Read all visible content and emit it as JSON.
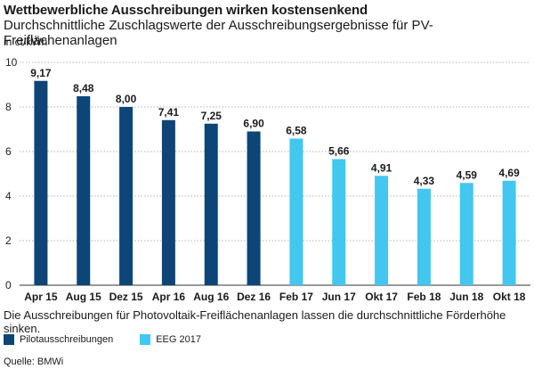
{
  "title": "Wettbewerbliche Ausschreibungen wirken kostensenkend",
  "subtitle": "Durchschnittliche Zuschlagswerte der Ausschreibungsergebnisse für PV-Freiflächenanlagen",
  "unit_label": "in ct/kWh",
  "caption": "Die Ausschreibungen für Photovoltaik-Freiflächenanlagen lassen die durchschnittliche Förderhöhe sinken.",
  "source": "Quelle: BMWi",
  "colors": {
    "pilot": "#0d4577",
    "eeg": "#43c6ef",
    "grid": "#b4b4b4",
    "axis": "#333333"
  },
  "legend": [
    {
      "label": "Pilotausschreibungen",
      "color": "#0d4577"
    },
    {
      "label": "EEG 2017",
      "color": "#43c6ef"
    }
  ],
  "chart_data": {
    "type": "bar",
    "categories": [
      "Apr 15",
      "Aug 15",
      "Dez 15",
      "Apr 16",
      "Aug 16",
      "Dez 16",
      "Feb 17",
      "Jun 17",
      "Okt 17",
      "Feb 18",
      "Jun 18",
      "Okt 18"
    ],
    "values": [
      9.17,
      8.48,
      8.0,
      7.41,
      7.25,
      6.9,
      6.58,
      5.66,
      4.91,
      4.33,
      4.59,
      4.69
    ],
    "value_labels": [
      "9,17",
      "8,48",
      "8,00",
      "7,41",
      "7,25",
      "6,90",
      "6,58",
      "5,66",
      "4,91",
      "4,33",
      "4,59",
      "4,69"
    ],
    "series_index": [
      0,
      0,
      0,
      0,
      0,
      0,
      1,
      1,
      1,
      1,
      1,
      1
    ],
    "ylim": [
      0,
      10
    ],
    "yticks": [
      0,
      2,
      4,
      6,
      8,
      10
    ],
    "grid": "horizontal",
    "legend_position": "bottom-left"
  }
}
